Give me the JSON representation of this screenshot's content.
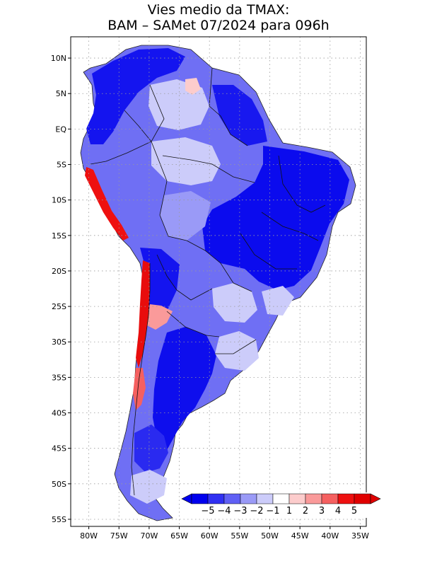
{
  "title": {
    "line1": "Vies medio da TMAX:",
    "line2": "BAM – SAMet 07/2024  para 096h"
  },
  "map": {
    "lon_range": [
      -83,
      -34
    ],
    "lat_range": [
      -56,
      13
    ],
    "lat_ticks": [
      {
        "value": 10,
        "label": "10N"
      },
      {
        "value": 5,
        "label": "5N"
      },
      {
        "value": 0,
        "label": "EQ"
      },
      {
        "value": -5,
        "label": "5S"
      },
      {
        "value": -10,
        "label": "10S"
      },
      {
        "value": -15,
        "label": "15S"
      },
      {
        "value": -20,
        "label": "20S"
      },
      {
        "value": -25,
        "label": "25S"
      },
      {
        "value": -30,
        "label": "30S"
      },
      {
        "value": -35,
        "label": "35S"
      },
      {
        "value": -40,
        "label": "40S"
      },
      {
        "value": -45,
        "label": "45S"
      },
      {
        "value": -50,
        "label": "50S"
      },
      {
        "value": -55,
        "label": "55S"
      }
    ],
    "lon_ticks": [
      {
        "value": -80,
        "label": "80W"
      },
      {
        "value": -75,
        "label": "75W"
      },
      {
        "value": -70,
        "label": "70W"
      },
      {
        "value": -65,
        "label": "65W"
      },
      {
        "value": -60,
        "label": "60W"
      },
      {
        "value": -55,
        "label": "55W"
      },
      {
        "value": -50,
        "label": "50W"
      },
      {
        "value": -45,
        "label": "45W"
      },
      {
        "value": -40,
        "label": "40W"
      },
      {
        "value": -35,
        "label": "35W"
      }
    ]
  },
  "colorbar": {
    "labels": [
      "−5",
      "−4",
      "−3",
      "−2",
      "−1",
      "1",
      "2",
      "3",
      "4",
      "5"
    ],
    "colors": [
      "#0000ee",
      "#3030f2",
      "#6060f5",
      "#9a9af7",
      "#ccccfa",
      "#ffffff",
      "#fccccc",
      "#fa9a9a",
      "#f56060",
      "#ee1010",
      "#e00000"
    ],
    "out_of_range_low": "#0000ee",
    "out_of_range_high": "#e00000"
  }
}
